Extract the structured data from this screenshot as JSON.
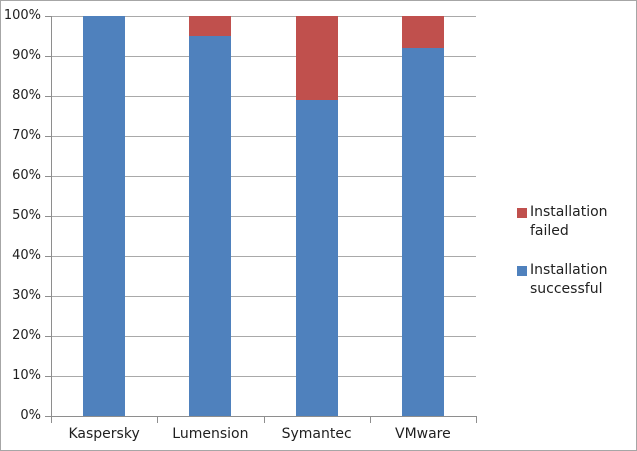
{
  "chart_data": {
    "type": "bar",
    "stacked": true,
    "title": "",
    "xlabel": "",
    "ylabel": "",
    "categories": [
      "Kaspersky",
      "Lumension",
      "Symantec",
      "VMware"
    ],
    "series": [
      {
        "name": "Installation successful",
        "color": "#4f81bd",
        "values": [
          100,
          95,
          79,
          92
        ]
      },
      {
        "name": "Installation failed",
        "color": "#c0504d",
        "values": [
          0,
          5,
          21,
          8
        ]
      }
    ],
    "ylim": [
      0,
      100
    ],
    "ytick_step": 10,
    "ytick_labels": [
      "0%",
      "10%",
      "20%",
      "30%",
      "40%",
      "50%",
      "60%",
      "70%",
      "80%",
      "90%",
      "100%"
    ],
    "grid": true,
    "legend_position": "right",
    "legend": [
      {
        "label": "Installation failed",
        "color": "#c0504d"
      },
      {
        "label": "Installation successful",
        "color": "#4f81bd"
      }
    ]
  },
  "colors": {
    "background": "#ffffff",
    "border": "#a6a6a6",
    "gridline": "#a9a9a9",
    "axis": "#8e8e8e",
    "text": "#1f1f1f"
  }
}
